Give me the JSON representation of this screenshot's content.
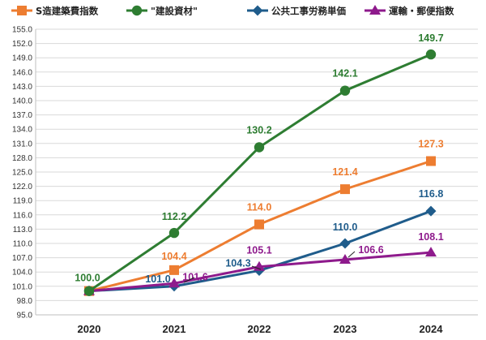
{
  "chart_data": {
    "type": "line",
    "categories": [
      "2020",
      "2021",
      "2022",
      "2023",
      "2024"
    ],
    "ylim": [
      95.0,
      155.0
    ],
    "ytick_step": 3,
    "yticks": [
      "95.0",
      "98.0",
      "101.0",
      "104.0",
      "107.0",
      "110.0",
      "113.0",
      "116.0",
      "119.0",
      "122.0",
      "125.0",
      "128.0",
      "131.0",
      "134.0",
      "137.0",
      "140.0",
      "143.0",
      "146.0",
      "149.0",
      "152.0",
      "155.0"
    ],
    "grid": "horizontal",
    "legend_position": "top",
    "series": [
      {
        "name": "S造建築費指数",
        "color": "#ED7D31",
        "marker": "square",
        "values": [
          100.0,
          104.4,
          114.0,
          121.4,
          127.3
        ],
        "labels": [
          "",
          "104.4",
          "114.0",
          "121.4",
          "127.3"
        ]
      },
      {
        "name": "\"建設資材\"",
        "color": "#2E7D32",
        "marker": "circle",
        "values": [
          100.0,
          112.2,
          130.2,
          142.1,
          149.7
        ],
        "labels": [
          "100.0",
          "112.2",
          "130.2",
          "142.1",
          "149.7"
        ]
      },
      {
        "name": "公共工事労務単価",
        "color": "#1F5C8B",
        "marker": "diamond",
        "values": [
          100.0,
          101.0,
          104.3,
          110.0,
          116.8
        ],
        "labels": [
          "",
          "101.0",
          "104.3",
          "110.0",
          "116.8"
        ]
      },
      {
        "name": "運輸・郵便指数",
        "color": "#8E1A8C",
        "marker": "triangle",
        "values": [
          100.0,
          101.6,
          105.1,
          106.6,
          108.1
        ],
        "labels": [
          "",
          "101.6",
          "105.1",
          "106.6",
          "108.1"
        ]
      }
    ]
  }
}
